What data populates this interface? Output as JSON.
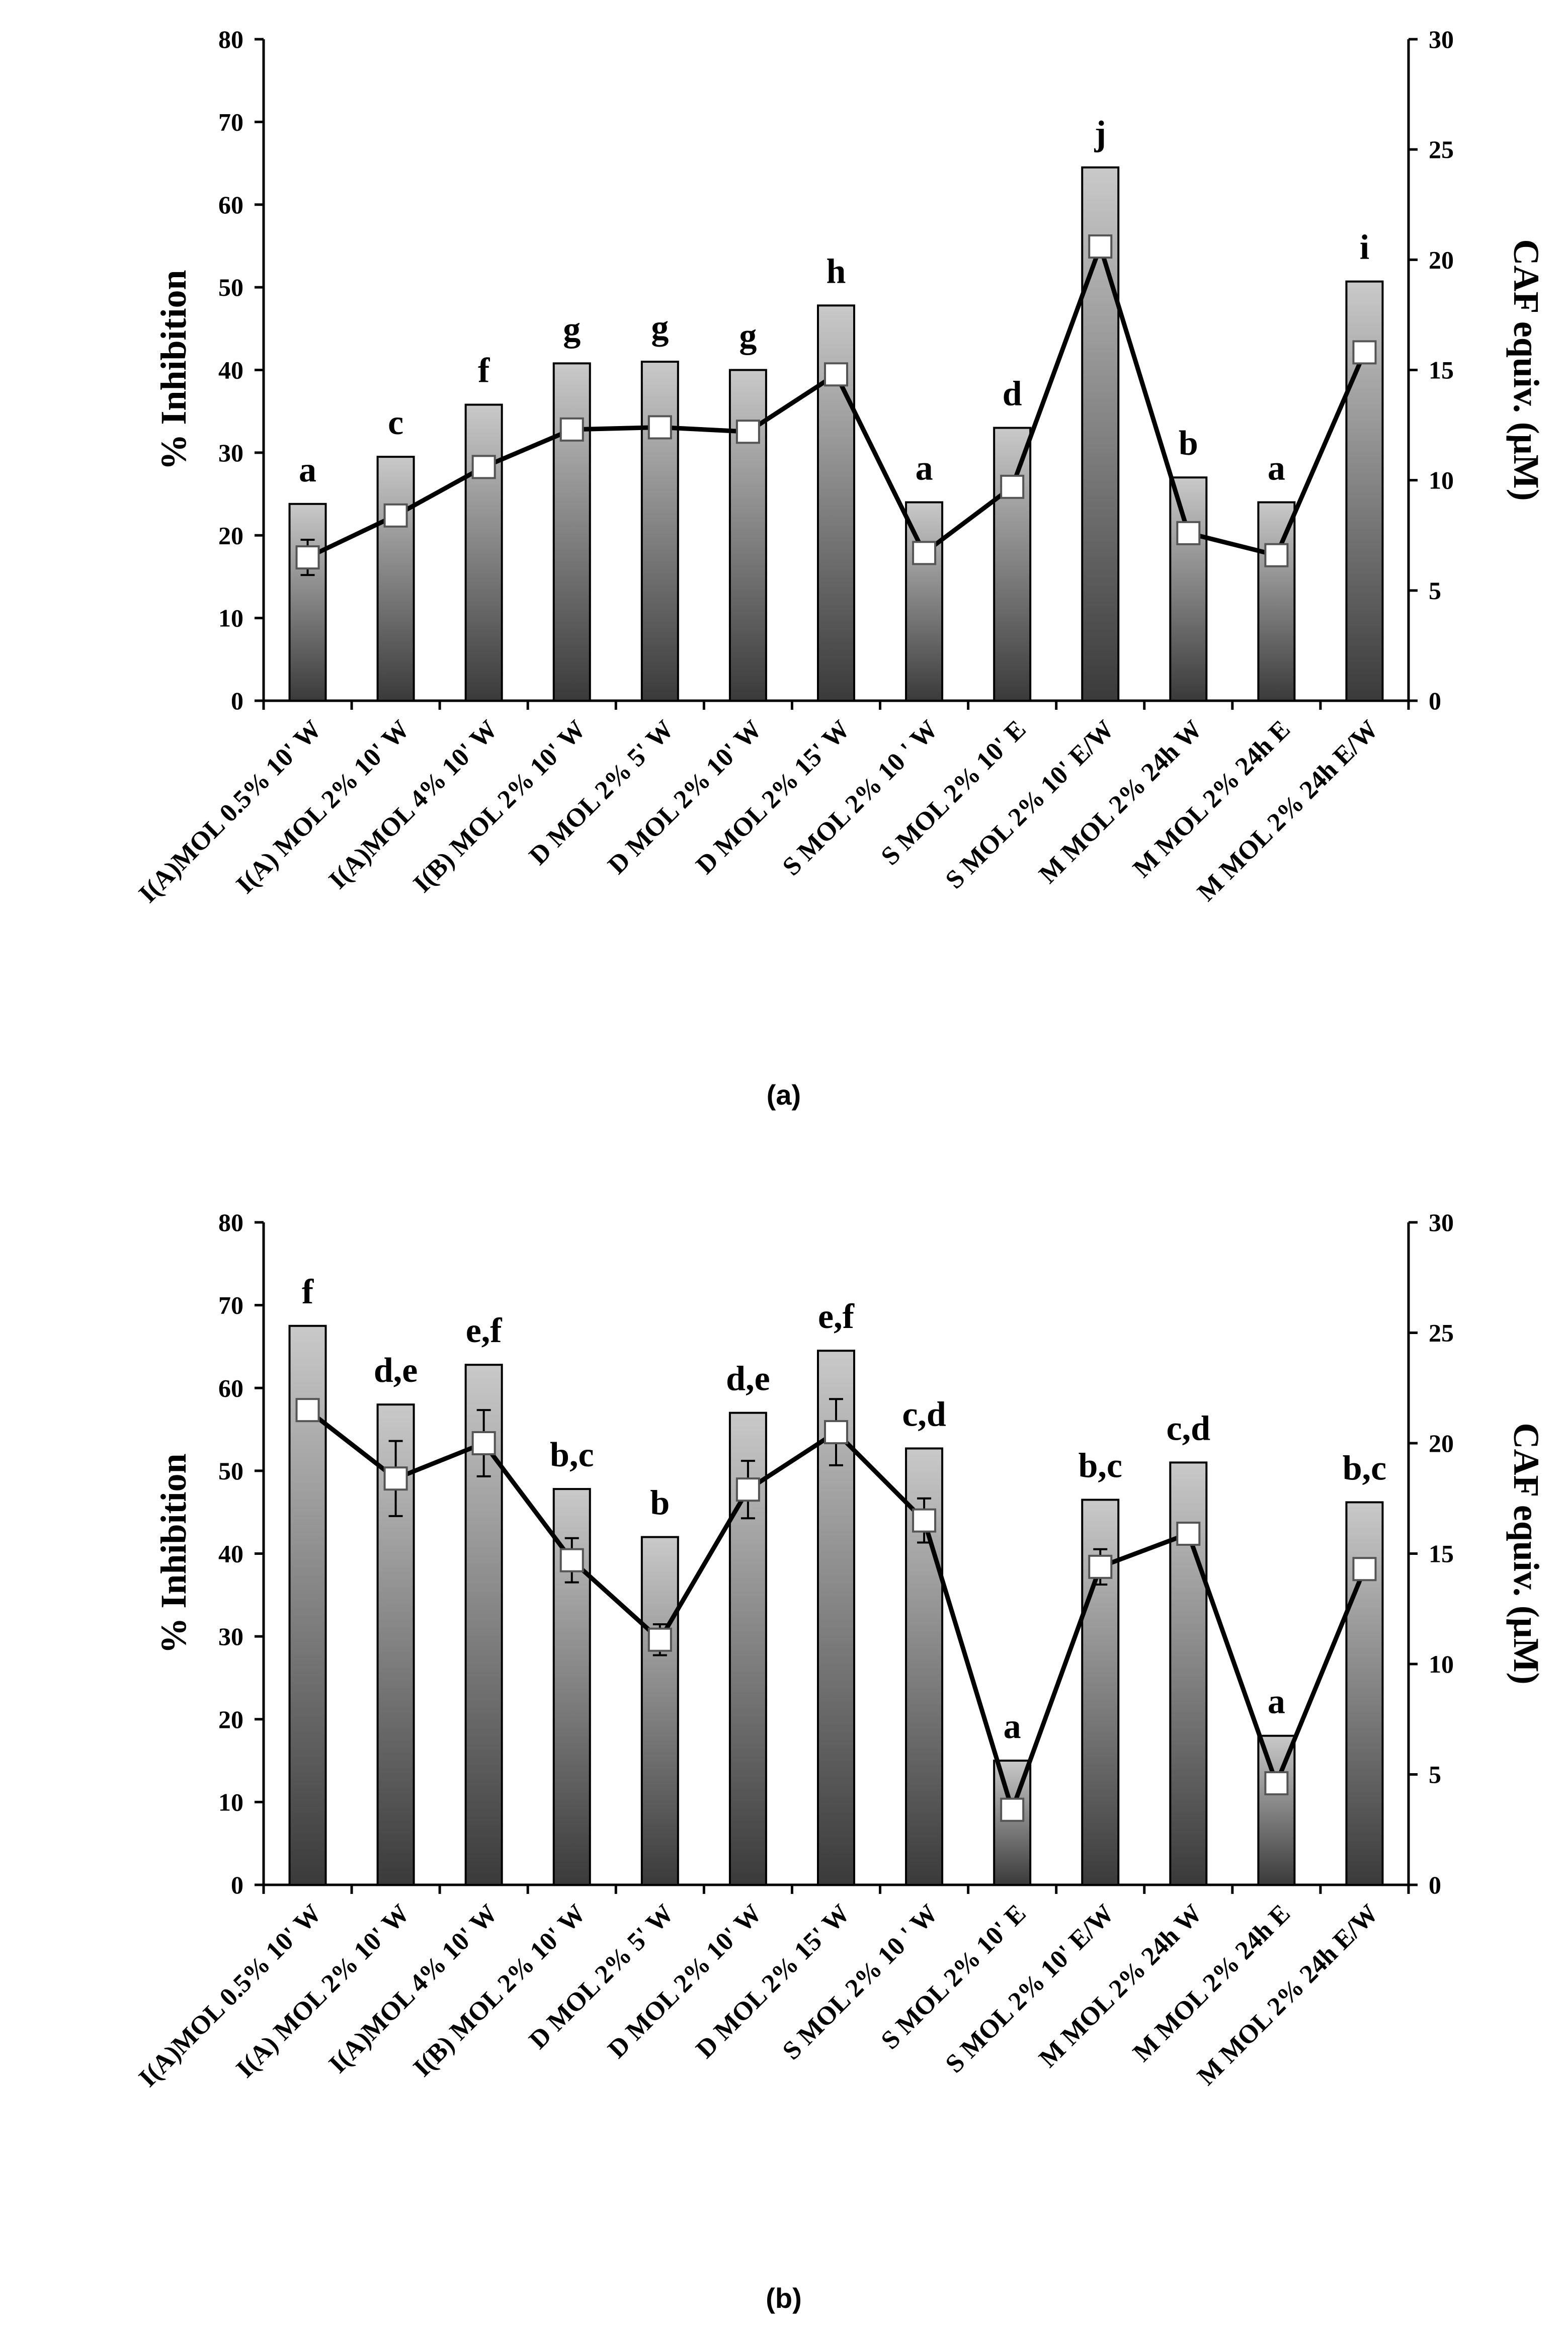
{
  "chart_data": [
    {
      "type": "bar",
      "caption": "(a)",
      "ylabel": "% Inhibition",
      "y2label": "CAF equiv. (μM)",
      "ylim": [
        0,
        80
      ],
      "y2lim": [
        0,
        30
      ],
      "yticks": [
        "0",
        "10",
        "20",
        "30",
        "40",
        "50",
        "60",
        "70",
        "80"
      ],
      "y2ticks": [
        "0",
        "5",
        "10",
        "15",
        "20",
        "25",
        "30"
      ],
      "categories": [
        "I(A)MOL 0.5% 10' W",
        "I(A) MOL 2% 10' W",
        "I(A)MOL 4% 10' W",
        "I(B) MOL 2% 10' W",
        "D MOL 2% 5' W",
        "D MOL 2% 10' W",
        "D MOL 2% 15' W",
        "S MOL 2% 10 ' W",
        "S MOL 2% 10' E",
        "S MOL 2% 10' E/W",
        "M MOL 2% 24h W",
        "M MOL 2% 24h E",
        "M MOL 2% 24h E/W"
      ],
      "series": [
        {
          "name": "% Inhibition",
          "kind": "bar",
          "axis": "left",
          "values": [
            23.8,
            29.5,
            35.8,
            40.8,
            41.0,
            40.0,
            47.8,
            24.0,
            33.0,
            64.5,
            27.0,
            24.0,
            50.7
          ]
        },
        {
          "name": "CAF equiv. (μM)",
          "kind": "line",
          "axis": "right",
          "values": [
            6.5,
            8.4,
            10.6,
            12.3,
            12.4,
            12.2,
            14.8,
            6.7,
            9.7,
            20.6,
            7.6,
            6.6,
            15.8
          ],
          "errors": [
            0.8,
            0,
            0,
            0,
            0,
            0,
            0,
            0,
            0,
            0,
            0,
            0,
            0
          ]
        }
      ],
      "significance": [
        "a",
        "c",
        "f",
        "g",
        "g",
        "g",
        "h",
        "a",
        "d",
        "j",
        "b",
        "a",
        "i"
      ]
    },
    {
      "type": "bar",
      "caption": "(b)",
      "ylabel": "% Inhibition",
      "y2label": "CAF equiv. (μM)",
      "ylim": [
        0,
        80
      ],
      "y2lim": [
        0,
        30
      ],
      "yticks": [
        "0",
        "10",
        "20",
        "30",
        "40",
        "50",
        "60",
        "70",
        "80"
      ],
      "y2ticks": [
        "0",
        "5",
        "10",
        "15",
        "20",
        "25",
        "30"
      ],
      "categories": [
        "I(A)MOL 0.5% 10' W",
        "I(A) MOL 2% 10' W",
        "I(A)MOL 4% 10' W",
        "I(B) MOL 2% 10' W",
        "D MOL 2% 5' W",
        "D MOL 2% 10' W",
        "D MOL 2% 15' W",
        "S MOL 2% 10 ' W",
        "S MOL 2% 10' E",
        "S MOL 2% 10' E/W",
        "M MOL 2% 24h W",
        "M MOL 2% 24h E",
        "M MOL 2% 24h E/W"
      ],
      "series": [
        {
          "name": "% Inhibition",
          "kind": "bar",
          "axis": "left",
          "values": [
            67.5,
            58.0,
            62.8,
            47.8,
            42.0,
            57.0,
            64.5,
            52.7,
            15.0,
            46.5,
            51.0,
            18.0,
            46.2
          ]
        },
        {
          "name": "CAF equiv. (μM)",
          "kind": "line",
          "axis": "right",
          "values": [
            21.5,
            18.4,
            20.0,
            14.7,
            11.1,
            17.9,
            20.5,
            16.5,
            3.4,
            14.4,
            15.9,
            4.6,
            14.3
          ],
          "errors": [
            0,
            1.7,
            1.5,
            1.0,
            0.7,
            1.3,
            1.5,
            1.0,
            0,
            0.8,
            0.5,
            0,
            0
          ]
        }
      ],
      "significance": [
        "f",
        "d,e",
        "e,f",
        "b,c",
        "b",
        "d,e",
        "e,f",
        "c,d",
        "a",
        "b,c",
        "c,d",
        "a",
        "b,c"
      ]
    }
  ]
}
